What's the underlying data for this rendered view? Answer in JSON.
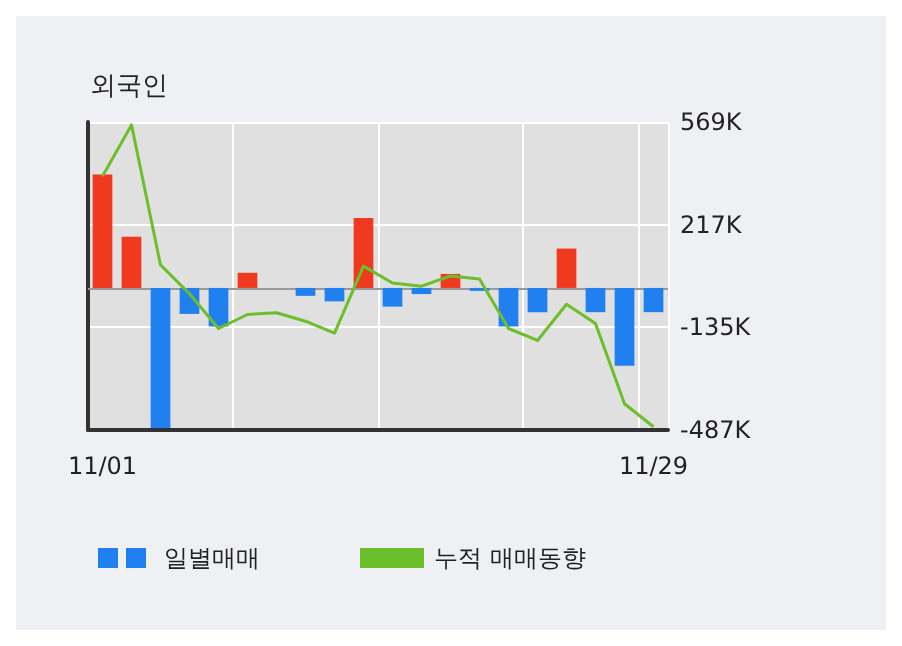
{
  "chart_data": {
    "type": "bar",
    "title": "외국인",
    "categories": [
      "11/01",
      null,
      null,
      null,
      null,
      null,
      null,
      null,
      null,
      null,
      null,
      null,
      null,
      null,
      null,
      null,
      null,
      null,
      null,
      "11/29"
    ],
    "series": [
      {
        "name": "일별매매",
        "colors": [
          "#f03a20",
          "#f03a20",
          "#2080f0",
          "#2080f0",
          "#2080f0",
          "#f03a20",
          "#2080f0",
          "#2080f0",
          "#2080f0",
          "#f03a20",
          "#2080f0",
          "#2080f0",
          "#f03a20",
          "#2080f0",
          "#2080f0",
          "#2080f0",
          "#f03a20",
          "#2080f0",
          "#2080f0",
          "#2080f0"
        ],
        "values": [
          389,
          176,
          -480,
          -89,
          -132,
          52,
          0,
          -27,
          -46,
          240,
          -64,
          -21,
          48,
          -10,
          -132,
          -83,
          135,
          -83,
          -267,
          -83
        ]
      },
      {
        "name": "누적 매매동향",
        "type": "line",
        "color": "#6cbf2a",
        "values": [
          383,
          559,
          79,
          -20,
          -139,
          -91,
          -85,
          -114,
          -155,
          75,
          17,
          6,
          41,
          31,
          -139,
          -180,
          -56,
          -122,
          -397,
          -476
        ]
      }
    ],
    "ylim": [
      -487,
      569
    ],
    "yticks": [
      {
        "value": 569,
        "label": "569K"
      },
      {
        "value": 217,
        "label": "217K"
      },
      {
        "value": -135,
        "label": "-135K"
      },
      {
        "value": -487,
        "label": "-487K"
      }
    ],
    "ref_lines": [
      {
        "axis": "y",
        "value": 0,
        "color": "#999999"
      }
    ],
    "grid": true,
    "legend": "bottom",
    "marker": "none",
    "line_style": "solid"
  }
}
